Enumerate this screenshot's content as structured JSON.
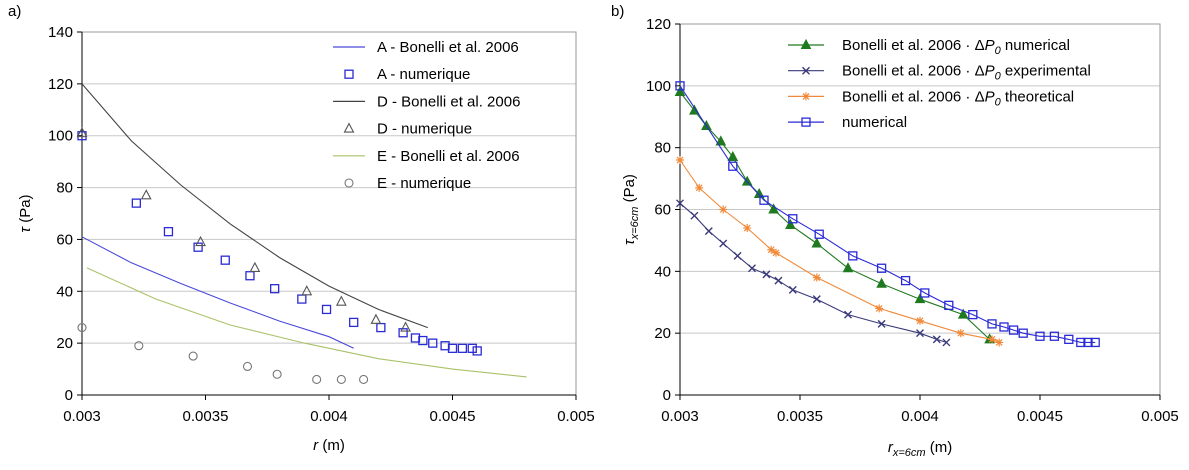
{
  "chart_data": [
    {
      "panel_label": "a)",
      "type": "scatter",
      "title": "",
      "xlabel": "r (m)",
      "xlabel_parts": [
        "r",
        " (m)"
      ],
      "ylabel": "τ (Pa)",
      "ylabel_parts": [
        "τ",
        " (Pa)"
      ],
      "xlim": [
        0.003,
        0.005
      ],
      "ylim": [
        0,
        140
      ],
      "xticks": [
        0.003,
        0.0035,
        0.004,
        0.0045,
        0.005
      ],
      "xtick_labels": [
        "0.003",
        "0.0035",
        "0.004",
        "0.0045",
        "0.005"
      ],
      "yticks": [
        0,
        20,
        40,
        60,
        80,
        100,
        120,
        140
      ],
      "ytick_labels": [
        "0",
        "20",
        "40",
        "60",
        "80",
        "100",
        "120",
        "140"
      ],
      "grid": "horizontal",
      "legend_position": "top-right",
      "series": [
        {
          "name": "A - Bonelli et al. 2006",
          "kind": "line",
          "color": "#4a4adc",
          "x": [
            0.003,
            0.0032,
            0.0034,
            0.0036,
            0.0038,
            0.004,
            0.0041
          ],
          "y": [
            61,
            51,
            43,
            35.5,
            28.5,
            22.5,
            18
          ]
        },
        {
          "name": "A - numerique",
          "kind": "marker",
          "marker": "square",
          "color": "#2a2ad6",
          "x": [
            0.003,
            0.00322,
            0.00335,
            0.00347,
            0.00358,
            0.00368,
            0.00378,
            0.00389,
            0.00399,
            0.0041,
            0.00421,
            0.0043,
            0.00435,
            0.00438,
            0.00442,
            0.00447,
            0.0045,
            0.00454,
            0.00458,
            0.0046
          ],
          "y": [
            100,
            74,
            63,
            57,
            52,
            46,
            41,
            37,
            33,
            28,
            26,
            24,
            22,
            21,
            20,
            19,
            18,
            18,
            18,
            17
          ]
        },
        {
          "name": "D - Bonelli et al. 2006",
          "kind": "line",
          "color": "#444444",
          "x": [
            0.003,
            0.0032,
            0.0034,
            0.0036,
            0.0038,
            0.004,
            0.0042,
            0.0044
          ],
          "y": [
            120,
            98,
            81,
            66,
            53,
            42,
            33,
            26
          ]
        },
        {
          "name": "D - numerique",
          "kind": "marker",
          "marker": "triangle",
          "color": "#555555",
          "x": [
            0.003,
            0.00326,
            0.00348,
            0.0037,
            0.00391,
            0.00405,
            0.00419,
            0.00431
          ],
          "y": [
            101,
            77,
            59,
            49,
            40,
            36,
            29,
            26
          ]
        },
        {
          "name": "E - Bonelli et al. 2006",
          "kind": "line",
          "color": "#a9c26a",
          "x": [
            0.00302,
            0.0033,
            0.0036,
            0.0039,
            0.0042,
            0.0045,
            0.0048
          ],
          "y": [
            49,
            37,
            27,
            20,
            14,
            10,
            7
          ]
        },
        {
          "name": "E - numerique",
          "kind": "marker",
          "marker": "circle",
          "color": "#777777",
          "x": [
            0.003,
            0.00323,
            0.00345,
            0.00367,
            0.00379,
            0.00395,
            0.00405,
            0.00414
          ],
          "y": [
            26,
            19,
            15,
            11,
            8,
            6,
            6,
            6
          ]
        }
      ]
    },
    {
      "panel_label": "b)",
      "type": "line",
      "title": "",
      "xlabel": "r_{x=6cm} (m)",
      "xlabel_parts": [
        "r",
        "x=6cm",
        " (m)"
      ],
      "ylabel": "τ_{x=6cm} (Pa)",
      "ylabel_parts": [
        "τ",
        "x=6cm",
        " (Pa)"
      ],
      "xlim": [
        0.003,
        0.005
      ],
      "ylim": [
        0,
        120
      ],
      "xticks": [
        0.003,
        0.0035,
        0.004,
        0.0045,
        0.005
      ],
      "xtick_labels": [
        "0.003",
        "0.0035",
        "0.004",
        "0.0045",
        "0.005"
      ],
      "yticks": [
        0,
        20,
        40,
        60,
        80,
        100,
        120
      ],
      "ytick_labels": [
        "0",
        "20",
        "40",
        "60",
        "80",
        "100",
        "120"
      ],
      "grid": "horizontal",
      "legend_position": "top-right",
      "series": [
        {
          "name": "Bonelli et al. 2006 · ΔP0 numerical",
          "legend_parts": [
            "Bonelli et al. 2006 · Δ",
            "P",
            "0",
            " numerical"
          ],
          "kind": "line+marker",
          "marker": "triangle-filled",
          "color": "#1f7a1f",
          "x": [
            0.003,
            0.00306,
            0.00311,
            0.00317,
            0.00322,
            0.00328,
            0.00333,
            0.00339,
            0.00346,
            0.00357,
            0.0037,
            0.00384,
            0.004,
            0.00418,
            0.00429
          ],
          "y": [
            98,
            92,
            87,
            82,
            77,
            69,
            65,
            60,
            55,
            49,
            41,
            36,
            31,
            26,
            18
          ]
        },
        {
          "name": "Bonelli et al. 2006 · ΔP0 experimental",
          "legend_parts": [
            "Bonelli et al. 2006 · Δ",
            "P",
            "0",
            " experimental"
          ],
          "kind": "line+marker",
          "marker": "x",
          "color": "#3a3a7a",
          "x": [
            0.003,
            0.00306,
            0.00312,
            0.00318,
            0.00324,
            0.0033,
            0.00336,
            0.00341,
            0.00347,
            0.00357,
            0.0037,
            0.00384,
            0.004,
            0.00407,
            0.00411
          ],
          "y": [
            62,
            58,
            53,
            49,
            45,
            41,
            39,
            37,
            34,
            31,
            26,
            23,
            20,
            18,
            17
          ]
        },
        {
          "name": "Bonelli et al. 2006 · ΔP0 theoretical",
          "legend_parts": [
            "Bonelli et al. 2006 · Δ",
            "P",
            "0",
            " theoretical"
          ],
          "kind": "line+marker",
          "marker": "asterisk",
          "color": "#f08a3a",
          "x": [
            0.003,
            0.00308,
            0.00318,
            0.00328,
            0.00338,
            0.0034,
            0.00357,
            0.00383,
            0.004,
            0.00417,
            0.0043,
            0.00433
          ],
          "y": [
            76,
            67,
            60,
            54,
            47,
            46,
            38,
            28,
            24,
            20,
            18,
            17
          ]
        },
        {
          "name": "numerical",
          "kind": "line+marker",
          "marker": "square",
          "color": "#2a2ad6",
          "x": [
            0.003,
            0.00322,
            0.00335,
            0.00347,
            0.00358,
            0.00372,
            0.00384,
            0.00394,
            0.00402,
            0.00412,
            0.00422,
            0.0043,
            0.00435,
            0.00439,
            0.00443,
            0.0045,
            0.00456,
            0.00462,
            0.00467,
            0.0047,
            0.00473
          ],
          "y": [
            100,
            74,
            63,
            57,
            52,
            45,
            41,
            37,
            33,
            29,
            26,
            23,
            22,
            21,
            20,
            19,
            19,
            18,
            17,
            17,
            17
          ]
        }
      ]
    }
  ]
}
